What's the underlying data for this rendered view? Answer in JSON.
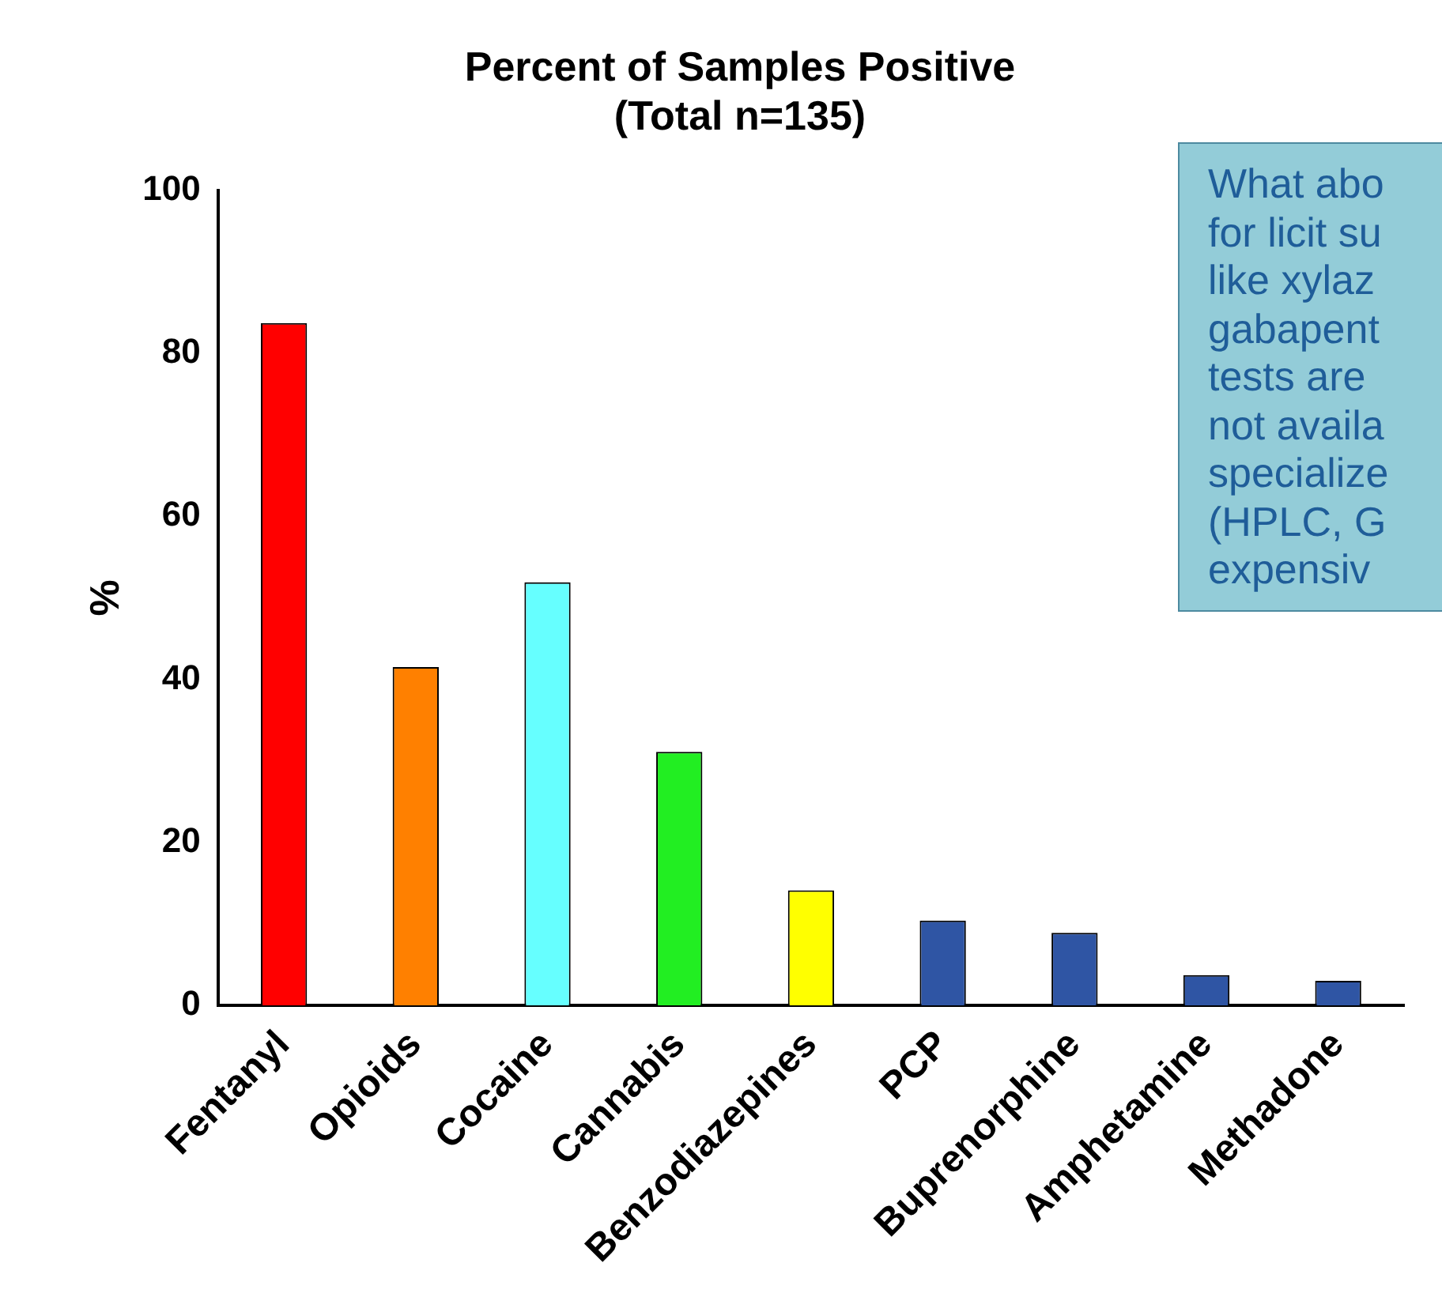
{
  "chart_data": {
    "type": "bar",
    "title": "Percent of Samples Positive\n(Total n=135)",
    "ylabel": "%",
    "categories": [
      "Fentanyl",
      "Opioids",
      "Cocaine",
      "Cannabis",
      "Benzodiazepines",
      "PCP",
      "Buprenorphine",
      "Amphetamine",
      "Methadone"
    ],
    "values": [
      83.7,
      41.5,
      51.9,
      31.1,
      14.1,
      10.4,
      8.9,
      3.7,
      3.0
    ],
    "colors": [
      "#ff0000",
      "#ff8000",
      "#66ffff",
      "#22ee22",
      "#ffff00",
      "#2f55a4",
      "#2f55a4",
      "#2f55a4",
      "#2f55a4"
    ],
    "ylim": [
      0,
      100
    ],
    "yticks": [
      0,
      20,
      40,
      60,
      80,
      100
    ],
    "annotations": [
      "What abo\nfor licit su\nlike xylaz\ngabapent\ntests are\nnot availa\nspecialize\n(HPLC, G\nexpensiv"
    ]
  }
}
